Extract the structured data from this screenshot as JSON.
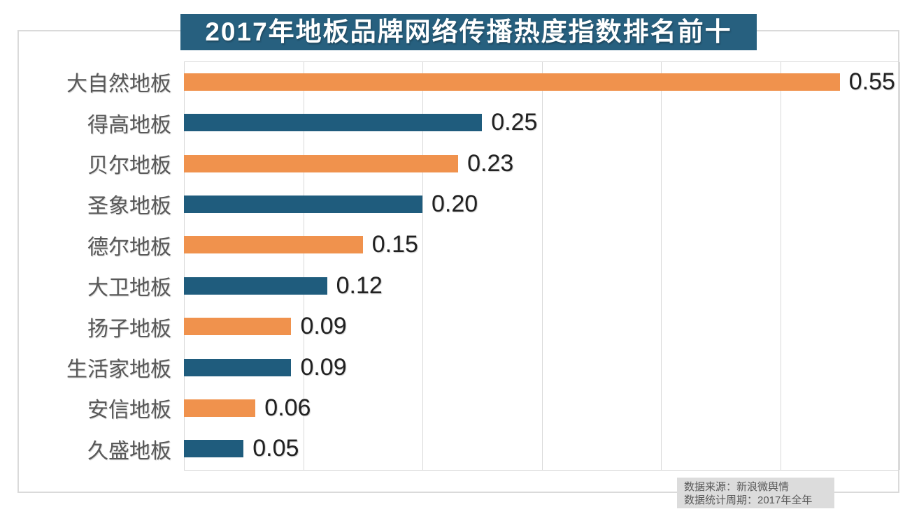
{
  "chart": {
    "title": "2017年地板品牌网络传播热度指数排名前十"
  },
  "chart_data": {
    "type": "bar",
    "orientation": "horizontal",
    "title": "2017年地板品牌网络传播热度指数排名前十",
    "categories": [
      "大自然地板",
      "得高地板",
      "贝尔地板",
      "圣象地板",
      "德尔地板",
      "大卫地板",
      "扬子地板",
      "生活家地板",
      "安信地板",
      "久盛地板"
    ],
    "values": [
      0.55,
      0.25,
      0.23,
      0.2,
      0.15,
      0.12,
      0.09,
      0.09,
      0.06,
      0.05
    ],
    "value_labels": [
      "0.55",
      "0.25",
      "0.23",
      "0.20",
      "0.15",
      "0.12",
      "0.09",
      "0.09",
      "0.06",
      "0.05"
    ],
    "xlabel": "",
    "ylabel": "",
    "xlim": [
      0,
      0.6
    ],
    "grid": {
      "visible": true,
      "vertical_interval": 0.1
    },
    "legend": "none",
    "bar_color_pattern": "alternating orange/blue starting with orange"
  },
  "footer": {
    "line1": "数据来源：新浪微舆情",
    "line2": "数据统计周期：2017年全年"
  },
  "colors": {
    "title_bg": "#27607F",
    "title_text": "#FFFFFF",
    "bar_orange": "#F0924D",
    "bar_blue": "#1F5C7D",
    "grid_line": "#D9D9D9",
    "category_label": "#595959",
    "value_label": "#212121",
    "footer_bg": "#DCDCDC",
    "footer_text": "#595959"
  }
}
